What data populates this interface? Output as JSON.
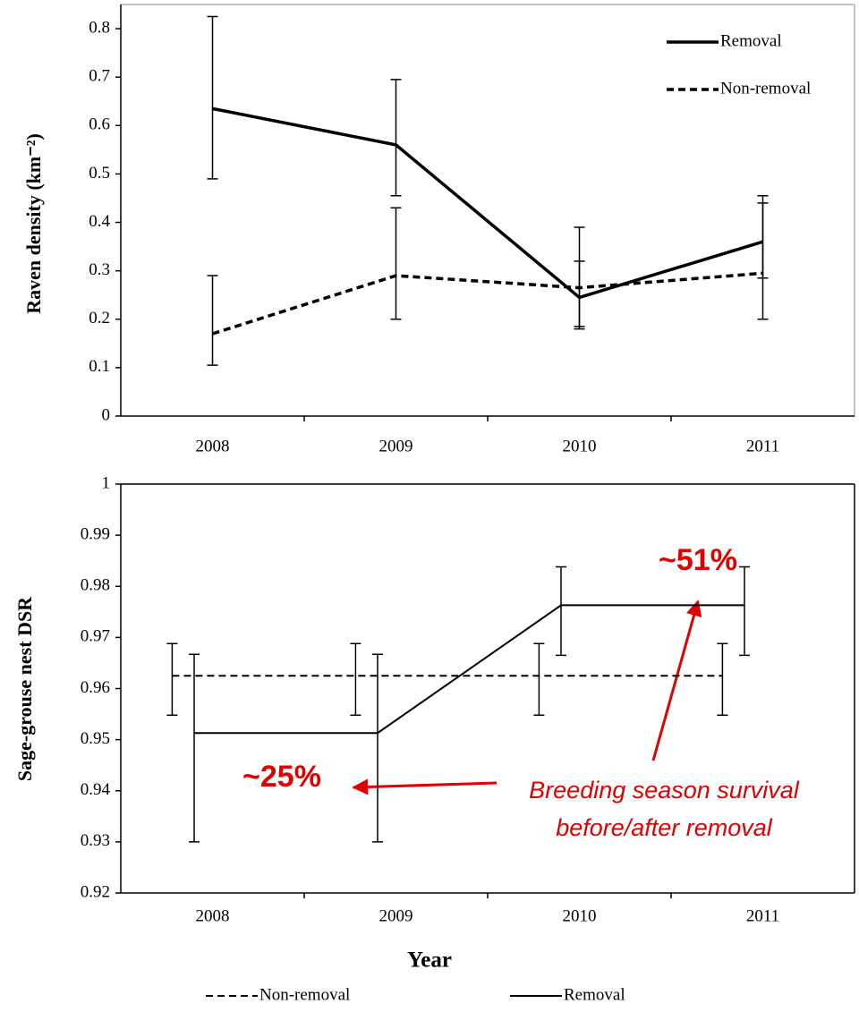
{
  "chart_data": [
    {
      "type": "line",
      "y_label": "Raven density (km⁻²)",
      "categories": [
        "2008",
        "2009",
        "2010",
        "2011"
      ],
      "ylim": [
        0,
        0.85
      ],
      "yticks": [
        0,
        0.1,
        0.2,
        0.3,
        0.4,
        0.5,
        0.6,
        0.7,
        0.8
      ],
      "legend": "upper right",
      "series": [
        {
          "name": "Removal",
          "color": "#000000",
          "style": "solid",
          "values": [
            0.635,
            0.56,
            0.245,
            0.36
          ],
          "lower": [
            0.49,
            0.455,
            0.18,
            0.285
          ],
          "upper": [
            0.825,
            0.695,
            0.39,
            0.455
          ]
        },
        {
          "name": "Non-removal",
          "color": "#000000",
          "style": "dashed",
          "values": [
            0.17,
            0.29,
            0.265,
            0.295
          ],
          "lower": [
            0.105,
            0.2,
            0.185,
            0.2
          ],
          "upper": [
            0.29,
            0.43,
            0.32,
            0.44
          ]
        }
      ]
    },
    {
      "type": "line",
      "y_label": "Sage-grouse nest DSR",
      "x_label": "Year",
      "categories": [
        "2008",
        "2009",
        "2010",
        "2011"
      ],
      "ylim": [
        0.92,
        1
      ],
      "yticks": [
        0.92,
        0.93,
        0.94,
        0.95,
        0.96,
        0.97,
        0.98,
        0.99,
        1
      ],
      "legend": "lower center",
      "series": [
        {
          "name": "Non-removal",
          "color": "#000000",
          "style": "dashed",
          "values": [
            0.9625,
            0.9625,
            0.9625,
            0.9625
          ],
          "lower": [
            0.9548,
            0.9548,
            0.9548,
            0.9548
          ],
          "upper": [
            0.9688,
            0.9688,
            0.9688,
            0.9688
          ]
        },
        {
          "name": "Removal",
          "color": "#000000",
          "style": "solid",
          "values": [
            0.9513,
            0.9513,
            0.9763,
            0.9763
          ],
          "lower": [
            0.93,
            0.93,
            0.9665,
            0.9665
          ],
          "upper": [
            0.9667,
            0.9667,
            0.9838,
            0.9838
          ]
        }
      ],
      "annotations": [
        "~25%",
        "~51%"
      ],
      "note_lines": [
        "Breeding season survival",
        "before/after removal"
      ]
    }
  ]
}
